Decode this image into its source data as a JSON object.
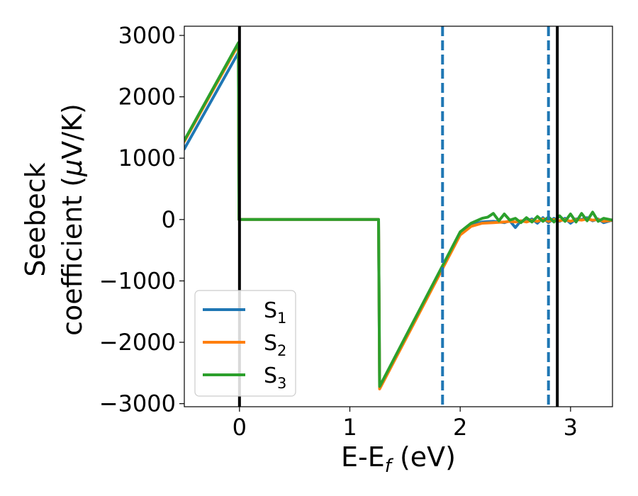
{
  "chart_data": {
    "type": "line",
    "title": "",
    "xlabel": "E-E",
    "xlabel_subscript": "f",
    "xlabel_unit": " (eV)",
    "ylabel_line1": "Seebeck",
    "ylabel_line2": "coefficient  (",
    "ylabel_mu": "μ",
    "ylabel_unit": "V/K)",
    "xlim": [
      -0.5,
      3.38
    ],
    "ylim": [
      -3050,
      3150
    ],
    "x_ticks": [
      0,
      1,
      2,
      3
    ],
    "x_tick_labels": [
      "0",
      "1",
      "2",
      "3"
    ],
    "y_ticks": [
      -3000,
      -2000,
      -1000,
      0,
      1000,
      2000,
      3000
    ],
    "y_tick_labels": [
      "−3000",
      "−2000",
      "−1000",
      "0",
      "1000",
      "2000",
      "3000"
    ],
    "grid": false,
    "legend_position": "lower-left",
    "vertical_lines": [
      {
        "x": 0.0,
        "style": "solid",
        "color": "#000000"
      },
      {
        "x": 2.88,
        "style": "solid",
        "color": "#000000"
      },
      {
        "x": 1.84,
        "style": "dashed",
        "color": "#1f77b4"
      },
      {
        "x": 2.8,
        "style": "dashed",
        "color": "#1f77b4"
      }
    ],
    "series": [
      {
        "name": "S",
        "subscript": "1",
        "color": "#1f77b4",
        "x": [
          -0.5,
          -0.01,
          -0.005,
          1.26,
          1.265,
          1.27,
          2.0,
          2.1,
          2.2,
          2.3,
          2.4,
          2.45,
          2.5,
          2.55,
          2.6,
          2.65,
          2.7,
          2.75,
          2.8,
          2.85,
          2.9,
          2.95,
          3.0,
          3.05,
          3.1,
          3.15,
          3.2,
          3.25,
          3.3,
          3.38
        ],
        "y": [
          1150,
          2720,
          0,
          0,
          -1400,
          -2730,
          -230,
          -90,
          -40,
          -30,
          -50,
          -20,
          -130,
          -20,
          -30,
          10,
          -60,
          30,
          -50,
          20,
          -30,
          20,
          -60,
          10,
          0,
          30,
          -20,
          10,
          -50,
          -10
        ]
      },
      {
        "name": "S",
        "subscript": "2",
        "color": "#ff7f0e",
        "x": [
          -0.5,
          -0.01,
          -0.005,
          1.26,
          1.265,
          1.27,
          2.0,
          2.1,
          2.2,
          2.3,
          2.4,
          2.45,
          2.5,
          2.55,
          2.6,
          2.65,
          2.7,
          2.75,
          2.8,
          2.85,
          2.9,
          2.95,
          3.0,
          3.05,
          3.1,
          3.15,
          3.2,
          3.25,
          3.3,
          3.38
        ],
        "y": [
          1270,
          2850,
          0,
          0,
          -1400,
          -2760,
          -250,
          -110,
          -60,
          -50,
          -40,
          -30,
          -40,
          -20,
          -40,
          -10,
          -30,
          10,
          -30,
          0,
          -20,
          0,
          -30,
          0,
          -10,
          10,
          -10,
          0,
          -30,
          -10
        ]
      },
      {
        "name": "S",
        "subscript": "3",
        "color": "#2ca02c",
        "x": [
          -0.5,
          -0.01,
          -0.005,
          1.26,
          1.265,
          1.27,
          2.0,
          2.1,
          2.2,
          2.25,
          2.3,
          2.35,
          2.4,
          2.45,
          2.5,
          2.55,
          2.6,
          2.65,
          2.7,
          2.75,
          2.8,
          2.85,
          2.9,
          2.95,
          3.0,
          3.05,
          3.1,
          3.15,
          3.2,
          3.25,
          3.3,
          3.38
        ],
        "y": [
          1290,
          2880,
          0,
          0,
          -1400,
          -2720,
          -200,
          -60,
          20,
          40,
          100,
          -20,
          90,
          -10,
          20,
          -50,
          30,
          -40,
          50,
          -30,
          40,
          -40,
          60,
          -30,
          90,
          -40,
          100,
          -20,
          120,
          -30,
          20,
          -10
        ]
      }
    ]
  }
}
